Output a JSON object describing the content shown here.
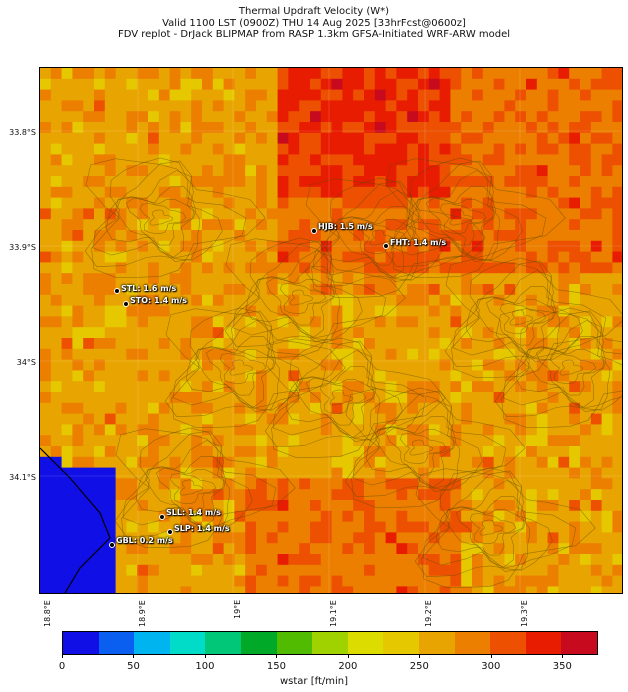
{
  "title": {
    "line1": "Thermal Updraft Velocity (W*)",
    "line2": "Valid 1100 LST (0900Z) THU 14 Aug 2025 [33hrFcst@0600z]",
    "line3": "FDV replot - DrJack BLIPMAP from RASP 1.3km GFSA-Initiated WRF-ARW model"
  },
  "axes": {
    "lat_labels": [
      "33.8°S",
      "33.9°S",
      "34°S",
      "34.1°S"
    ],
    "lon_labels": [
      "18.8°E",
      "18.9°E",
      "19°E",
      "19.1°E",
      "19.2°E",
      "19.3°E"
    ]
  },
  "stations": [
    {
      "label": "HJB: 1.5 m/s"
    },
    {
      "label": "FHT: 1.4 m/s"
    },
    {
      "label": "STL: 1.6 m/s"
    },
    {
      "label": "STO: 1.4 m/s"
    },
    {
      "label": "SLL: 1.4 m/s"
    },
    {
      "label": "SLP: 1.4 m/s"
    },
    {
      "label": "GBL: 0.2 m/s"
    }
  ],
  "colorbar": {
    "label": "wstar [ft/min]",
    "ticks": [
      "0",
      "50",
      "100",
      "150",
      "200",
      "250",
      "300",
      "350"
    ],
    "colors": [
      "#0f0fe6",
      "#0a5ff0",
      "#00b4f0",
      "#00dcc8",
      "#00c878",
      "#00aa28",
      "#50bb00",
      "#a0d200",
      "#dcdc00",
      "#e6c800",
      "#e8a400",
      "#ec7e00",
      "#ec5000",
      "#e81c00",
      "#c80a1e"
    ]
  }
}
